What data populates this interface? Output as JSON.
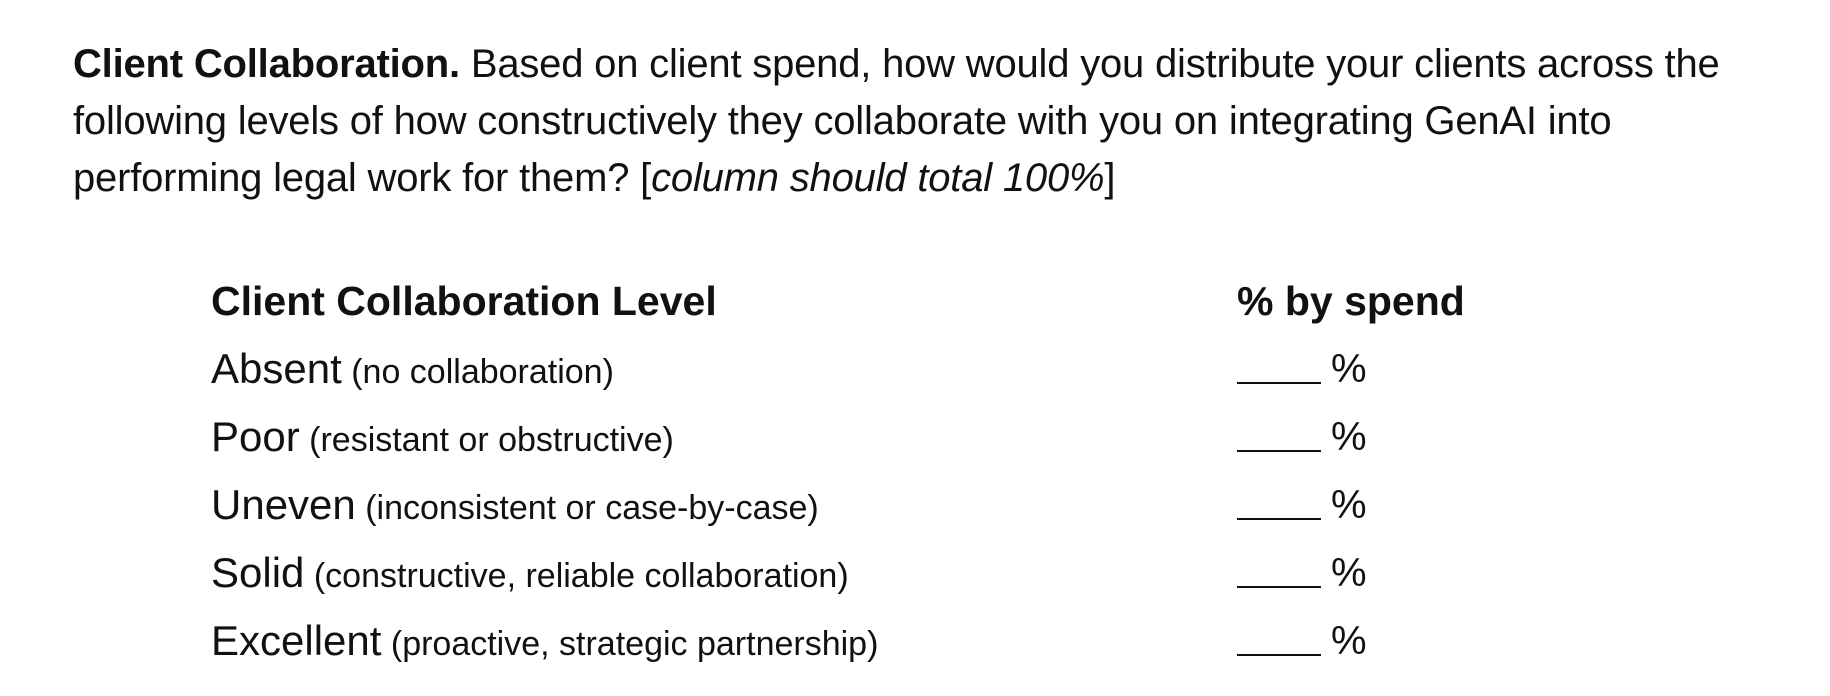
{
  "question": {
    "title": "Client Collaboration.",
    "text": " Based on client spend, how would you distribute your clients across the following levels of how constructively they collaborate with you on integrating GenAI into performing legal work for them? [",
    "instruction": "column should total 100%",
    "closing": "]"
  },
  "table": {
    "headers": {
      "level": "Client Collaboration Level",
      "spend": "% by spend"
    },
    "rows": [
      {
        "name": "Absent",
        "desc": " (no collaboration)",
        "unit": "%"
      },
      {
        "name": "Poor",
        "desc": " (resistant or obstructive)",
        "unit": "%"
      },
      {
        "name": "Uneven",
        "desc": " (inconsistent or case-by-case)",
        "unit": "%"
      },
      {
        "name": "Solid",
        "desc": " (constructive, reliable collaboration)",
        "unit": "%"
      },
      {
        "name": "Excellent",
        "desc": " (proactive, strategic partnership)",
        "unit": "%"
      }
    ]
  }
}
